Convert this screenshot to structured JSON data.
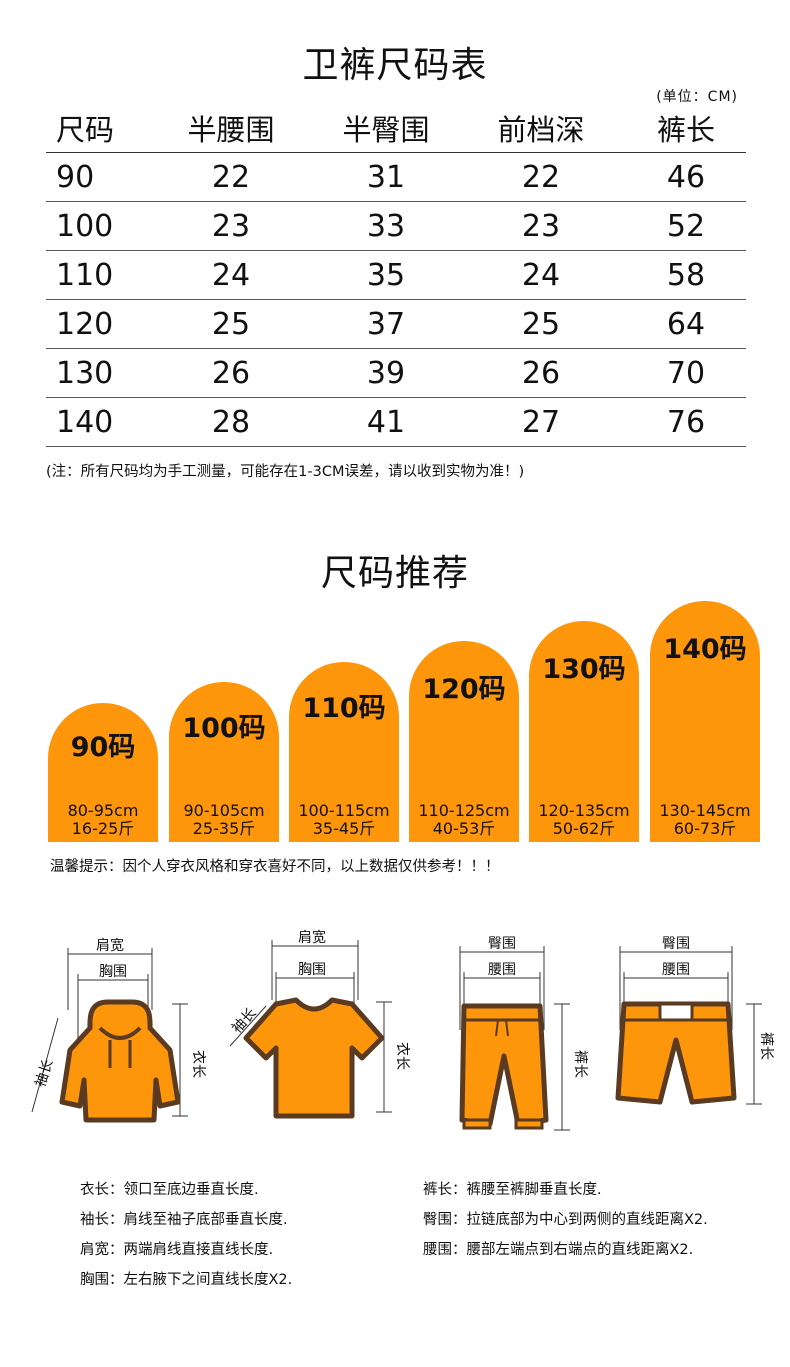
{
  "size_table": {
    "title": "卫裤尺码表",
    "unit": "(单位：CM)",
    "headers": [
      "尺码",
      "半腰围",
      "半臀围",
      "前档深",
      "裤长"
    ],
    "rows": [
      [
        "90",
        "22",
        "31",
        "22",
        "46"
      ],
      [
        "100",
        "23",
        "33",
        "23",
        "52"
      ],
      [
        "110",
        "24",
        "35",
        "24",
        "58"
      ],
      [
        "120",
        "25",
        "37",
        "25",
        "64"
      ],
      [
        "130",
        "26",
        "39",
        "26",
        "70"
      ],
      [
        "140",
        "28",
        "41",
        "27",
        "76"
      ]
    ],
    "note": "(注：所有尺码均为手工测量，可能存在1-3CM误差，请以收到实物为准！)"
  },
  "recommend": {
    "title": "尺码推荐",
    "items": [
      {
        "size": "90码",
        "height": "80-95cm",
        "weight": "16-25斤"
      },
      {
        "size": "100码",
        "height": "90-105cm",
        "weight": "25-35斤"
      },
      {
        "size": "110码",
        "height": "100-115cm",
        "weight": "35-45斤"
      },
      {
        "size": "120码",
        "height": "110-125cm",
        "weight": "40-53斤"
      },
      {
        "size": "130码",
        "height": "120-135cm",
        "weight": "50-62斤"
      },
      {
        "size": "140码",
        "height": "130-145cm",
        "weight": "60-73斤"
      }
    ],
    "tip": "温馨提示：因个人穿衣风格和穿衣喜好不同，以上数据仅供参考！！！",
    "accent_color": "#fd960a"
  },
  "diagrams": {
    "hoodie": {
      "shoulder": "肩宽",
      "chest": "胸围",
      "sleeve": "袖长",
      "length": "衣长"
    },
    "tshirt": {
      "shoulder": "肩宽",
      "chest": "胸围",
      "sleeve": "袖长",
      "length": "衣长"
    },
    "pants": {
      "hip": "臀围",
      "waist": "腰围",
      "length": "裤长"
    },
    "shorts": {
      "hip": "臀围",
      "waist": "腰围",
      "length": "裤长"
    }
  },
  "definitions": {
    "left": [
      {
        "term": "衣长：",
        "text": "领口至底边垂直长度."
      },
      {
        "term": "袖长：",
        "text": "肩线至袖子底部垂直长度."
      },
      {
        "term": "肩宽：",
        "text": "两端肩线直接直线长度."
      },
      {
        "term": "胸围：",
        "text": "左右腋下之间直线长度X2."
      }
    ],
    "right": [
      {
        "term": "裤长：",
        "text": "裤腰至裤脚垂直长度."
      },
      {
        "term": "臀围：",
        "text": "拉链底部为中心到两侧的直线距离X2."
      },
      {
        "term": "腰围：",
        "text": "腰部左端点到右端点的直线距离X2."
      }
    ]
  }
}
